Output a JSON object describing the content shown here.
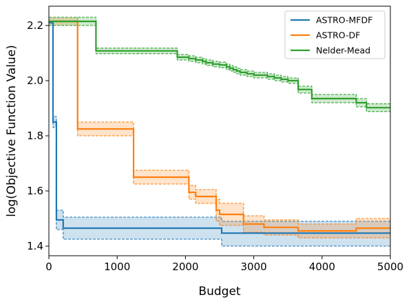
{
  "chart_data": {
    "type": "line",
    "title": "",
    "xlabel": "Budget",
    "ylabel": "log(Objective Function Value)",
    "xlim": [
      0,
      5000
    ],
    "ylim": [
      1.365,
      2.27
    ],
    "xticks": [
      0,
      1000,
      2000,
      3000,
      4000,
      5000
    ],
    "xtick_labels": [
      "0",
      "1000",
      "2000",
      "3000",
      "4000",
      "5000"
    ],
    "yticks": [
      1.4,
      1.6,
      1.8,
      2.0,
      2.2
    ],
    "ytick_labels": [
      "1.4",
      "1.6",
      "1.8",
      "2.0",
      "2.2"
    ],
    "grid": false,
    "legend_position": "top-right",
    "series": [
      {
        "name": "ASTRO-MFDF",
        "color": "#1f77b4",
        "x": [
          0,
          60,
          60,
          110,
          110,
          210,
          210,
          2530,
          2530,
          5000
        ],
        "y": [
          2.21,
          2.21,
          1.85,
          1.85,
          1.495,
          1.495,
          1.465,
          1.465,
          1.447,
          1.447
        ],
        "lower": [
          2.21,
          2.21,
          1.83,
          1.83,
          1.46,
          1.46,
          1.425,
          1.425,
          1.4,
          1.4
        ],
        "upper": [
          2.21,
          2.21,
          1.87,
          1.87,
          1.53,
          1.53,
          1.505,
          1.505,
          1.49,
          1.49
        ]
      },
      {
        "name": "ASTRO-DF",
        "color": "#ff7f0e",
        "x": [
          0,
          420,
          420,
          1240,
          1240,
          2050,
          2050,
          2150,
          2150,
          2450,
          2450,
          2500,
          2500,
          2850,
          2850,
          3150,
          3150,
          3650,
          3650,
          4500,
          4500,
          5000
        ],
        "y": [
          2.215,
          2.215,
          1.825,
          1.825,
          1.65,
          1.65,
          1.595,
          1.595,
          1.58,
          1.58,
          1.53,
          1.53,
          1.515,
          1.515,
          1.48,
          1.48,
          1.468,
          1.468,
          1.455,
          1.455,
          1.465,
          1.465
        ],
        "lower": [
          2.2,
          2.2,
          1.8,
          1.8,
          1.625,
          1.625,
          1.57,
          1.57,
          1.555,
          1.555,
          1.49,
          1.49,
          1.475,
          1.475,
          1.45,
          1.45,
          1.44,
          1.44,
          1.43,
          1.43,
          1.43,
          1.43
        ],
        "upper": [
          2.23,
          2.23,
          1.85,
          1.85,
          1.675,
          1.675,
          1.62,
          1.62,
          1.605,
          1.605,
          1.57,
          1.57,
          1.555,
          1.555,
          1.51,
          1.51,
          1.495,
          1.495,
          1.48,
          1.48,
          1.5,
          1.5
        ]
      },
      {
        "name": "Nelder-Mead",
        "color": "#2ca02c",
        "x": [
          0,
          690,
          690,
          1880,
          1880,
          2050,
          2050,
          2150,
          2150,
          2250,
          2250,
          2300,
          2300,
          2400,
          2400,
          2500,
          2500,
          2600,
          2600,
          2650,
          2650,
          2700,
          2700,
          2750,
          2750,
          2800,
          2800,
          2900,
          2900,
          3000,
          3000,
          3200,
          3200,
          3300,
          3300,
          3400,
          3400,
          3500,
          3500,
          3650,
          3650,
          3850,
          3850,
          4500,
          4500,
          4650,
          4650,
          5000
        ],
        "y": [
          2.215,
          2.215,
          2.108,
          2.108,
          2.085,
          2.085,
          2.08,
          2.08,
          2.075,
          2.075,
          2.07,
          2.07,
          2.065,
          2.065,
          2.06,
          2.06,
          2.057,
          2.057,
          2.05,
          2.05,
          2.045,
          2.045,
          2.04,
          2.04,
          2.035,
          2.035,
          2.03,
          2.03,
          2.025,
          2.025,
          2.02,
          2.02,
          2.015,
          2.015,
          2.01,
          2.01,
          2.005,
          2.005,
          2.0,
          2.0,
          1.968,
          1.968,
          1.935,
          1.935,
          1.92,
          1.92,
          1.902,
          1.902
        ],
        "lower": [
          2.2,
          2.2,
          2.098,
          2.098,
          2.075,
          2.075,
          2.07,
          2.07,
          2.065,
          2.065,
          2.06,
          2.06,
          2.055,
          2.055,
          2.05,
          2.05,
          2.047,
          2.047,
          2.04,
          2.04,
          2.035,
          2.035,
          2.03,
          2.03,
          2.025,
          2.025,
          2.02,
          2.02,
          2.015,
          2.015,
          2.01,
          2.01,
          2.005,
          2.005,
          2.0,
          2.0,
          1.995,
          1.995,
          1.99,
          1.99,
          1.955,
          1.955,
          1.92,
          1.92,
          1.905,
          1.905,
          1.888,
          1.888
        ],
        "upper": [
          2.23,
          2.23,
          2.118,
          2.118,
          2.095,
          2.095,
          2.09,
          2.09,
          2.085,
          2.085,
          2.08,
          2.08,
          2.075,
          2.075,
          2.07,
          2.07,
          2.067,
          2.067,
          2.06,
          2.06,
          2.055,
          2.055,
          2.05,
          2.05,
          2.045,
          2.045,
          2.04,
          2.04,
          2.035,
          2.035,
          2.03,
          2.03,
          2.025,
          2.025,
          2.02,
          2.02,
          2.015,
          2.015,
          2.01,
          2.01,
          1.98,
          1.98,
          1.95,
          1.95,
          1.935,
          1.935,
          1.916,
          1.916
        ]
      }
    ]
  }
}
